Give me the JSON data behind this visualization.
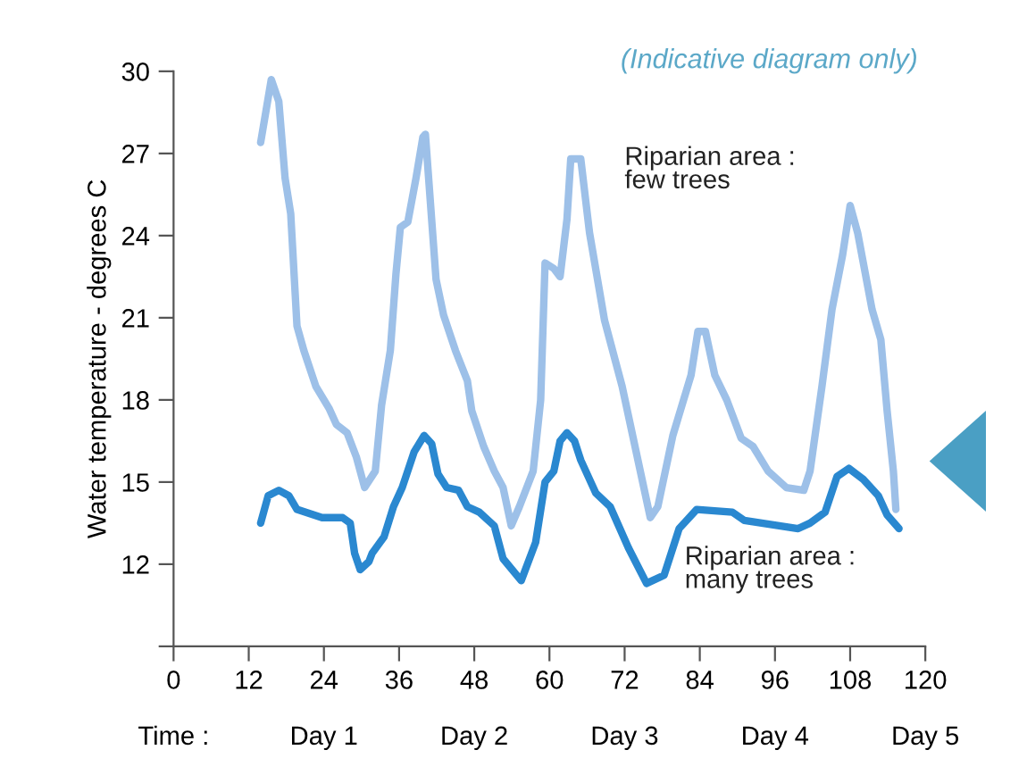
{
  "chart_data": {
    "type": "line",
    "ylabel": "Water temperature - degrees C",
    "annotations": [
      "(Indicative diagram only)",
      "Time :",
      "Day 1",
      "Day 2",
      "Day 3",
      "Day 4",
      "Day 5"
    ],
    "xlim": [
      0,
      120
    ],
    "xticks": [
      0,
      12,
      24,
      36,
      48,
      60,
      72,
      84,
      96,
      108,
      120
    ],
    "ylim": [
      9,
      30
    ],
    "yticks": [
      {
        "value": 9,
        "label": null
      },
      12,
      15,
      18,
      21,
      24,
      27,
      30
    ],
    "grid": false,
    "legend": false,
    "marker": "none",
    "line_style": "solid",
    "series": [
      {
        "name": "Riparian area :\nfew trees",
        "color": "#9dc0e8",
        "x": [
          13.9,
          15.6,
          16.8,
          17.8,
          18.7,
          19.7,
          20.8,
          22.7,
          24.8,
          26.0,
          27.7,
          29.2,
          30.5,
          32.2,
          33.2,
          34.6,
          35.5,
          36.2,
          37.4,
          38.7,
          39.8,
          40.2,
          41.9,
          43.1,
          45.0,
          46.9,
          47.6,
          49.5,
          51.2,
          52.6,
          53.9,
          55.2,
          57.4,
          58.6,
          59.3,
          60.7,
          61.7,
          62.8,
          63.4,
          65.0,
          66.4,
          68.8,
          71.6,
          74.5,
          76.1,
          77.3,
          79.7,
          82.6,
          83.7,
          84.9,
          86.4,
          88.3,
          90.6,
          92.5,
          94.9,
          97.8,
          100.6,
          101.6,
          103.5,
          105.1,
          106.8,
          108.0,
          109.2,
          111.5,
          112.9,
          113.9,
          114.9,
          115.3
        ],
        "values": [
          27.4,
          29.7,
          28.9,
          26.1,
          24.8,
          20.7,
          19.8,
          18.5,
          17.7,
          17.1,
          16.8,
          15.9,
          14.8,
          15.4,
          17.8,
          19.8,
          22.6,
          24.3,
          24.5,
          26.1,
          27.6,
          27.7,
          22.4,
          21.1,
          19.8,
          18.7,
          17.6,
          16.3,
          15.4,
          14.8,
          13.4,
          14.1,
          15.4,
          18.0,
          23.0,
          22.8,
          22.5,
          24.6,
          26.8,
          26.8,
          24.1,
          20.9,
          18.5,
          15.4,
          13.7,
          14.1,
          16.7,
          18.9,
          20.5,
          20.5,
          18.9,
          18.0,
          16.6,
          16.3,
          15.4,
          14.8,
          14.7,
          15.4,
          18.5,
          21.3,
          23.3,
          25.1,
          24.1,
          21.3,
          20.2,
          17.6,
          15.4,
          14.0
        ]
      },
      {
        "name": "Riparian area :\nmany trees",
        "color": "#2a88d0",
        "x": [
          13.9,
          15.1,
          16.8,
          18.4,
          19.7,
          23.7,
          27.0,
          28.2,
          28.9,
          29.8,
          31.2,
          31.7,
          33.6,
          35.1,
          36.5,
          38.4,
          40.0,
          41.2,
          42.2,
          43.6,
          45.5,
          46.9,
          48.8,
          51.2,
          52.6,
          55.5,
          57.8,
          59.3,
          60.7,
          61.7,
          62.8,
          64.0,
          65.0,
          67.4,
          69.7,
          72.6,
          75.5,
          78.3,
          80.7,
          83.5,
          89.2,
          91.1,
          99.7,
          101.6,
          104.0,
          105.9,
          107.8,
          110.1,
          112.5,
          113.9,
          115.8
        ],
        "values": [
          13.5,
          14.5,
          14.7,
          14.5,
          14.0,
          13.7,
          13.7,
          13.5,
          12.4,
          11.8,
          12.1,
          12.4,
          13.0,
          14.1,
          14.8,
          16.1,
          16.7,
          16.4,
          15.3,
          14.8,
          14.7,
          14.1,
          13.9,
          13.4,
          12.2,
          11.4,
          12.8,
          15.0,
          15.4,
          16.5,
          16.8,
          16.5,
          15.8,
          14.6,
          14.1,
          12.6,
          11.3,
          11.6,
          13.3,
          14.0,
          13.9,
          13.6,
          13.3,
          13.5,
          13.9,
          15.2,
          15.5,
          15.1,
          14.5,
          13.8,
          13.3
        ]
      }
    ]
  }
}
